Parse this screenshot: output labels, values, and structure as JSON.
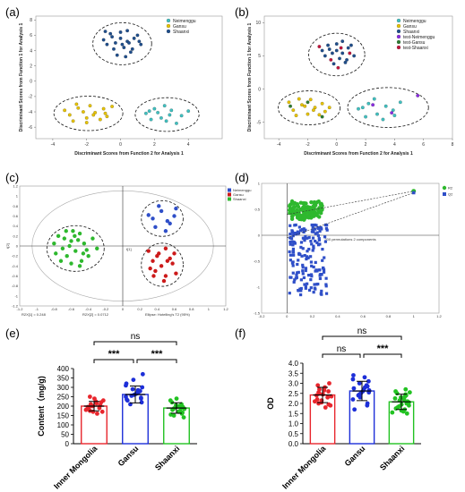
{
  "panel_labels": [
    "(a)",
    "(b)",
    "(c)",
    "(d)",
    "(e)",
    "(f)"
  ],
  "chart_data": [
    {
      "id": "a",
      "type": "scatter",
      "xlabel": "Discriminant Scores from Function 2 for Analysis 1",
      "ylabel": "Discriminant Scores from Function 1 for Analysis 1",
      "xlim": [
        -5,
        6
      ],
      "ylim": [
        -7.5,
        8.5
      ],
      "xticks": [
        -4,
        -2,
        0,
        2,
        4
      ],
      "yticks": [
        -6,
        -4,
        -2,
        0,
        2,
        4,
        6,
        8
      ],
      "legend_position": "top-right",
      "series": [
        {
          "name": "Neimenggu",
          "color": "#40c0c0",
          "points": [
            [
              1.5,
              -4.2
            ],
            [
              2.0,
              -3.6
            ],
            [
              2.4,
              -4.8
            ],
            [
              3.0,
              -3.8
            ],
            [
              2.7,
              -5.2
            ],
            [
              3.6,
              -4.5
            ],
            [
              1.8,
              -5.0
            ],
            [
              2.9,
              -4.4
            ],
            [
              3.3,
              -5.5
            ],
            [
              2.2,
              -4.1
            ],
            [
              4.0,
              -3.9
            ],
            [
              2.6,
              -3.2
            ],
            [
              1.7,
              -3.9
            ]
          ]
        },
        {
          "name": "Gansu",
          "color": "#e6c200",
          "points": [
            [
              -3.0,
              -4.4
            ],
            [
              -2.5,
              -3.5
            ],
            [
              -2.0,
              -4.8
            ],
            [
              -1.5,
              -4.1
            ],
            [
              -1.0,
              -3.6
            ],
            [
              -2.8,
              -5.2
            ],
            [
              -1.8,
              -3.2
            ],
            [
              -0.8,
              -4.6
            ],
            [
              -2.2,
              -4.0
            ],
            [
              -1.2,
              -5.0
            ],
            [
              -3.3,
              -3.8
            ],
            [
              -0.5,
              -3.3
            ],
            [
              -1.6,
              -4.4
            ],
            [
              -2.6,
              -3.0
            ],
            [
              -0.9,
              -4.2
            ],
            [
              -2.0,
              -5.4
            ]
          ]
        },
        {
          "name": "Shaanxi",
          "color": "#1f4e8c",
          "points": [
            [
              -0.5,
              5.8
            ],
            [
              0.0,
              6.4
            ],
            [
              0.4,
              5.2
            ],
            [
              -0.8,
              4.8
            ],
            [
              0.8,
              5.6
            ],
            [
              0.2,
              4.4
            ],
            [
              -0.3,
              5.0
            ],
            [
              1.0,
              6.0
            ],
            [
              0.6,
              3.8
            ],
            [
              -0.2,
              3.4
            ],
            [
              0.4,
              6.6
            ],
            [
              -0.6,
              6.2
            ],
            [
              1.2,
              4.8
            ],
            [
              0.0,
              5.6
            ],
            [
              0.7,
              4.2
            ],
            [
              -1.0,
              5.4
            ],
            [
              0.3,
              3.2
            ],
            [
              -0.4,
              4.2
            ],
            [
              1.1,
              5.2
            ],
            [
              0.5,
              5.0
            ],
            [
              -0.9,
              6.5
            ],
            [
              0.1,
              4.8
            ]
          ]
        }
      ]
    },
    {
      "id": "b",
      "type": "scatter",
      "xlabel": "Discriminant Scores from Function 2 for Analysis 1",
      "ylabel": "Discriminant Scores from Function 1 for Analysis 1",
      "xlim": [
        -5,
        8
      ],
      "ylim": [
        -7.5,
        11
      ],
      "xticks": [
        -4,
        -2,
        0,
        2,
        4,
        6,
        8
      ],
      "yticks": [
        -5,
        0,
        5,
        10
      ],
      "legend_position": "top-right",
      "series": [
        {
          "name": "Neimenggu",
          "color": "#40c0c0",
          "points": [
            [
              1.5,
              -3.0
            ],
            [
              2.2,
              -2.2
            ],
            [
              2.8,
              -3.8
            ],
            [
              3.4,
              -2.6
            ],
            [
              2.0,
              -4.2
            ],
            [
              3.9,
              -3.2
            ],
            [
              4.4,
              -2.0
            ],
            [
              2.6,
              -1.5
            ],
            [
              3.2,
              -4.6
            ],
            [
              1.8,
              -2.8
            ],
            [
              4.0,
              -4.0
            ]
          ]
        },
        {
          "name": "Gansu",
          "color": "#e6c200",
          "points": [
            [
              -3.0,
              -3.2
            ],
            [
              -2.4,
              -2.4
            ],
            [
              -2.0,
              -3.8
            ],
            [
              -1.5,
              -2.8
            ],
            [
              -1.0,
              -2.2
            ],
            [
              -2.8,
              -4.0
            ],
            [
              -1.8,
              -1.6
            ],
            [
              -0.8,
              -3.4
            ],
            [
              -2.2,
              -2.6
            ],
            [
              -1.2,
              -3.9
            ],
            [
              -3.3,
              -2.0
            ],
            [
              -0.5,
              -2.8
            ],
            [
              -1.6,
              -3.2
            ],
            [
              -2.6,
              -1.5
            ]
          ]
        },
        {
          "name": "Shaanxi",
          "color": "#1f4e8c",
          "points": [
            [
              -0.5,
              6.0
            ],
            [
              0.0,
              6.8
            ],
            [
              0.4,
              5.4
            ],
            [
              -0.8,
              5.0
            ],
            [
              0.8,
              6.2
            ],
            [
              0.2,
              4.6
            ],
            [
              -0.3,
              5.4
            ],
            [
              1.0,
              6.6
            ],
            [
              0.6,
              4.0
            ],
            [
              -0.2,
              3.8
            ],
            [
              0.4,
              7.2
            ],
            [
              -0.6,
              6.6
            ],
            [
              1.2,
              5.0
            ],
            [
              0.0,
              5.8
            ],
            [
              0.7,
              4.4
            ],
            [
              -1.0,
              5.8
            ]
          ]
        },
        {
          "name": "test-Neimenggu",
          "color": "#8a2be2",
          "points": [
            [
              2.5,
              -2.4
            ],
            [
              3.8,
              -3.6
            ],
            [
              5.6,
              -1.0
            ]
          ]
        },
        {
          "name": "test-Gansu",
          "color": "#2e7d32",
          "points": [
            [
              -2.0,
              -2.0
            ],
            [
              -1.0,
              -4.2
            ],
            [
              -3.2,
              -2.6
            ]
          ]
        },
        {
          "name": "test-Shaanxi",
          "color": "#c0143c",
          "points": [
            [
              0.3,
              6.2
            ],
            [
              -0.4,
              4.4
            ],
            [
              0.9,
              5.4
            ],
            [
              -1.2,
              6.4
            ],
            [
              0.1,
              3.2
            ]
          ]
        }
      ]
    },
    {
      "id": "c",
      "type": "scatter",
      "xlabel": "t[1]",
      "ylabel": "t[2]",
      "xlim": [
        -1.2,
        1.2
      ],
      "ylim": [
        -1.2,
        1.2
      ],
      "footer_left": "R2X[1] = 0.248",
      "footer_mid": "R2X[2] = 0.0712",
      "footer_right": "Ellipse: Hotelling's T2 (95%)",
      "legend_position": "top-right",
      "series": [
        {
          "name": "Neimenggu",
          "color": "#2f4fc8",
          "points": [
            [
              0.35,
              0.55
            ],
            [
              0.45,
              0.7
            ],
            [
              0.55,
              0.45
            ],
            [
              0.38,
              0.38
            ],
            [
              0.6,
              0.6
            ],
            [
              0.5,
              0.3
            ],
            [
              0.42,
              0.8
            ],
            [
              0.62,
              0.75
            ],
            [
              0.3,
              0.62
            ],
            [
              0.52,
              0.5
            ]
          ]
        },
        {
          "name": "Gansu",
          "color": "#cc1a1a",
          "points": [
            [
              0.3,
              -0.1
            ],
            [
              0.4,
              -0.2
            ],
            [
              0.5,
              -0.05
            ],
            [
              0.35,
              -0.3
            ],
            [
              0.55,
              -0.25
            ],
            [
              0.45,
              -0.4
            ],
            [
              0.6,
              -0.15
            ],
            [
              0.38,
              -0.5
            ],
            [
              0.5,
              -0.6
            ],
            [
              0.42,
              -0.15
            ],
            [
              0.58,
              -0.35
            ],
            [
              0.32,
              -0.45
            ],
            [
              0.48,
              -0.7
            ],
            [
              0.62,
              -0.55
            ],
            [
              0.36,
              -0.6
            ],
            [
              0.52,
              -0.3
            ]
          ]
        },
        {
          "name": "Shaanxi",
          "color": "#2eb82e",
          "points": [
            [
              -0.75,
              0.2
            ],
            [
              -0.6,
              0.1
            ],
            [
              -0.5,
              0.25
            ],
            [
              -0.7,
              -0.05
            ],
            [
              -0.55,
              -0.1
            ],
            [
              -0.45,
              0.05
            ],
            [
              -0.65,
              -0.2
            ],
            [
              -0.4,
              -0.2
            ],
            [
              -0.8,
              0.05
            ],
            [
              -0.58,
              0.3
            ],
            [
              -0.48,
              -0.3
            ],
            [
              -0.72,
              -0.3
            ],
            [
              -0.35,
              0.15
            ],
            [
              -0.62,
              0.0
            ],
            [
              -0.52,
              0.12
            ],
            [
              -0.42,
              -0.08
            ],
            [
              -0.68,
              0.15
            ],
            [
              -0.78,
              -0.15
            ],
            [
              -0.5,
              -0.4
            ],
            [
              -0.6,
              -0.35
            ],
            [
              -0.3,
              -0.05
            ],
            [
              -0.56,
              0.2
            ],
            [
              -0.66,
              0.3
            ],
            [
              -0.46,
              -0.15
            ]
          ]
        }
      ]
    },
    {
      "id": "d",
      "type": "scatter",
      "xlabel": "200 permutations 2 components",
      "xlim": [
        -0.2,
        1.2
      ],
      "ylim": [
        -1.5,
        1.0
      ],
      "xticks": [
        -0.2,
        0,
        0.2,
        0.4,
        0.6,
        0.8,
        1,
        1.2
      ],
      "yticks": [
        -1.5,
        -1,
        -0.5,
        0,
        0.5,
        1
      ],
      "legend_position": "top-right",
      "series": [
        {
          "name": "R2",
          "color": "#2eb82e",
          "original_point": [
            1.0,
            0.85
          ]
        },
        {
          "name": "Q2",
          "color": "#2f4fc8",
          "original_point": [
            1.0,
            0.82
          ]
        }
      ]
    },
    {
      "id": "e",
      "type": "bar",
      "ylabel": "Content（mg/g)",
      "categories": [
        "Inner Mongolia",
        "Gansu",
        "Shaanxi"
      ],
      "values": [
        200,
        262,
        190
      ],
      "errors": [
        25,
        45,
        28
      ],
      "colors": [
        "#e8262d",
        "#1d2fd8",
        "#22c222"
      ],
      "ylim": [
        0,
        400
      ],
      "yticks": [
        0,
        50,
        100,
        150,
        200,
        250,
        300,
        350,
        400
      ],
      "significance": [
        {
          "pair": [
            0,
            1
          ],
          "label": "***"
        },
        {
          "pair": [
            1,
            2
          ],
          "label": "***"
        },
        {
          "pair": [
            0,
            2
          ],
          "label": "ns"
        }
      ],
      "points_per_group": [
        [
          160,
          170,
          175,
          180,
          185,
          190,
          195,
          200,
          205,
          210,
          215,
          220,
          230,
          240,
          250,
          170,
          200,
          225
        ],
        [
          210,
          220,
          230,
          240,
          250,
          255,
          260,
          265,
          270,
          275,
          280,
          290,
          300,
          310,
          320,
          340,
          370,
          235,
          245,
          285
        ],
        [
          140,
          150,
          160,
          165,
          170,
          175,
          180,
          185,
          190,
          195,
          200,
          205,
          210,
          220,
          230,
          240,
          155,
          188,
          198
        ]
      ]
    },
    {
      "id": "f",
      "type": "bar",
      "ylabel": "OD",
      "categories": [
        "Inner Mongolia",
        "Gansu",
        "Shaanxi"
      ],
      "values": [
        2.42,
        2.62,
        2.08
      ],
      "errors": [
        0.38,
        0.48,
        0.38
      ],
      "colors": [
        "#e8262d",
        "#1d2fd8",
        "#22c222"
      ],
      "ylim": [
        0,
        4.0
      ],
      "yticks": [
        0.0,
        0.5,
        1.0,
        1.5,
        2.0,
        2.5,
        3.0,
        3.5,
        4.0
      ],
      "significance": [
        {
          "pair": [
            0,
            1
          ],
          "label": "ns"
        },
        {
          "pair": [
            1,
            2
          ],
          "label": "***"
        },
        {
          "pair": [
            0,
            2
          ],
          "label": "ns"
        }
      ],
      "points_per_group": [
        [
          1.8,
          1.9,
          2.0,
          2.1,
          2.2,
          2.3,
          2.4,
          2.5,
          2.6,
          2.7,
          2.8,
          3.0,
          2.35,
          2.45,
          2.55,
          2.15,
          2.05,
          2.65,
          2.9,
          1.95
        ],
        [
          1.7,
          2.0,
          2.2,
          2.4,
          2.5,
          2.6,
          2.7,
          2.8,
          2.9,
          3.0,
          3.1,
          3.2,
          3.4,
          2.3,
          2.65,
          2.75,
          2.85,
          3.3,
          2.55,
          2.45,
          1.9
        ],
        [
          1.5,
          1.6,
          1.7,
          1.8,
          1.9,
          2.0,
          2.1,
          2.2,
          2.3,
          2.4,
          2.5,
          2.6,
          1.65,
          1.75,
          1.85,
          1.95,
          2.05,
          2.15,
          2.25,
          2.35,
          2.45,
          2.55,
          1.55,
          2.7
        ]
      ]
    }
  ]
}
